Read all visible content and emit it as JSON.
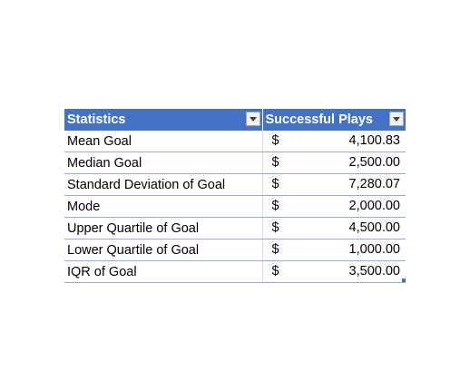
{
  "table": {
    "headers": [
      "Statistics",
      "Successful Plays"
    ],
    "rows": [
      {
        "label": "Mean Goal",
        "currency": "$",
        "value": "4,100.83"
      },
      {
        "label": "Median Goal",
        "currency": "$",
        "value": "2,500.00"
      },
      {
        "label": "Standard Deviation of Goal",
        "currency": "$",
        "value": "7,280.07"
      },
      {
        "label": "Mode",
        "currency": "$",
        "value": "2,000.00"
      },
      {
        "label": "Upper Quartile of Goal",
        "currency": "$",
        "value": "4,500.00"
      },
      {
        "label": "Lower Quartile of Goal",
        "currency": "$",
        "value": "1,000.00"
      },
      {
        "label": "IQR of Goal",
        "currency": "$",
        "value": "3,500.00"
      }
    ]
  },
  "colors": {
    "header_bg": "#4472c4",
    "header_text": "#ffffff",
    "row_border": "#8ea9db"
  },
  "icons": {
    "filter": "dropdown-arrow-icon"
  }
}
